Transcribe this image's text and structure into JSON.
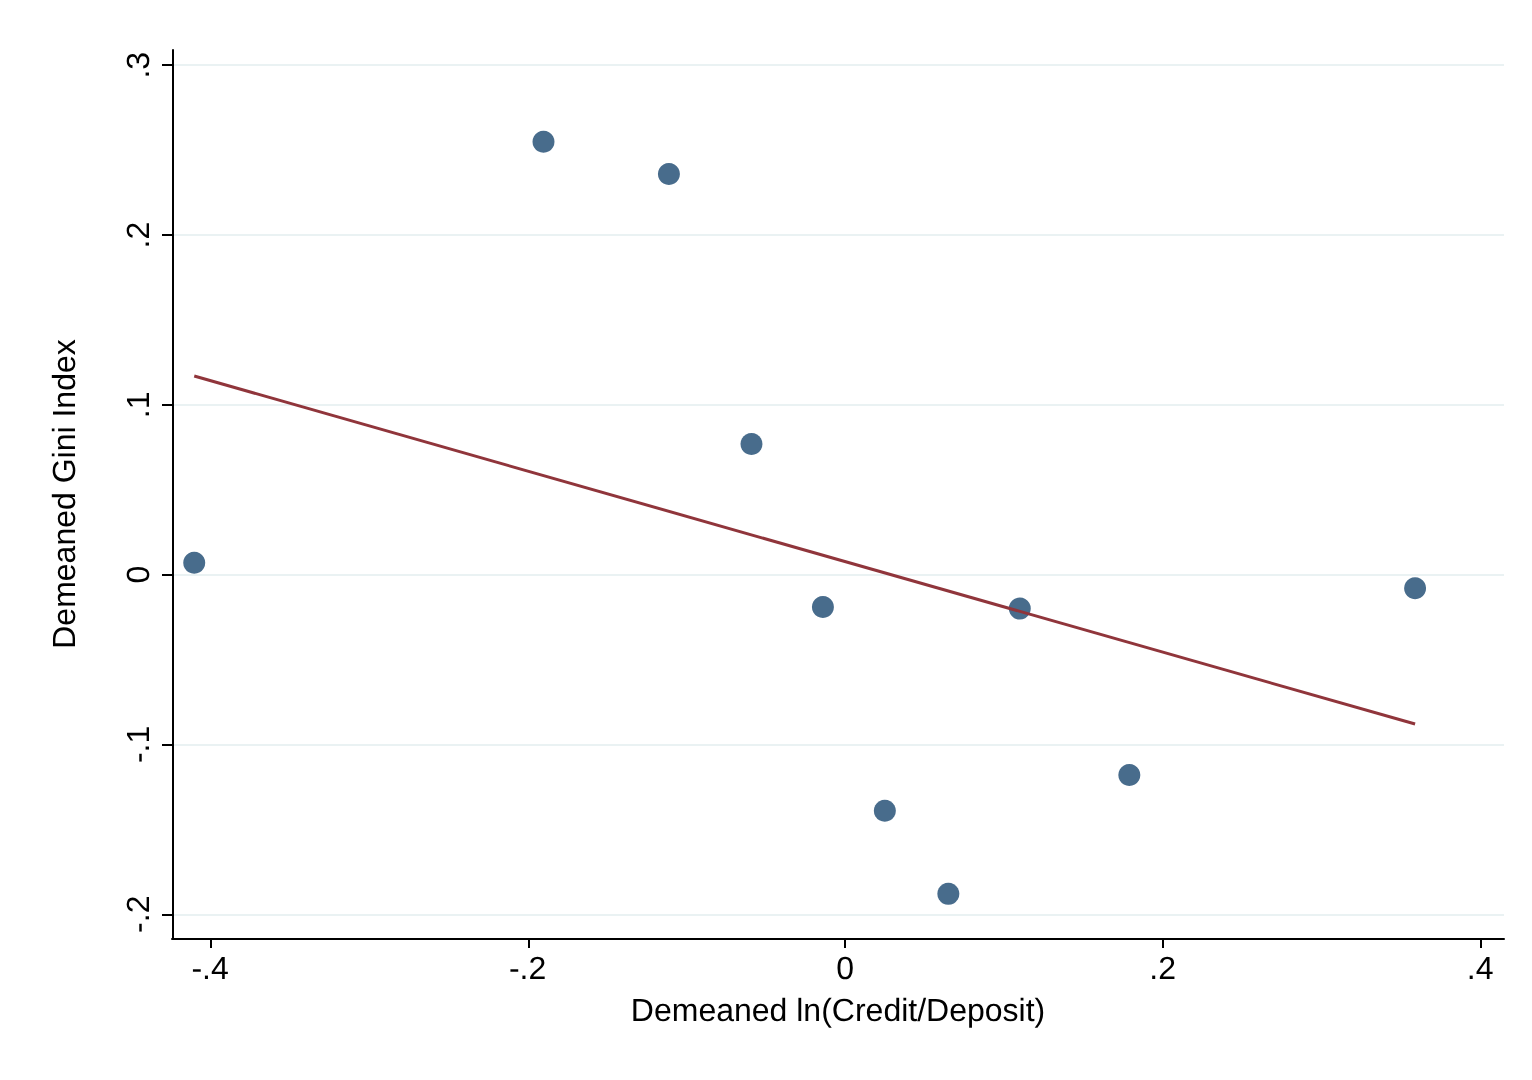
{
  "chart_data": {
    "type": "scatter",
    "xlabel": "Demeaned ln(Credit/Deposit)",
    "ylabel": "Demeaned Gini Index",
    "series": [
      {
        "color": "#1a476f",
        "marker": "circle",
        "x": [
          -0.41,
          -0.19,
          -0.111,
          -0.059,
          -0.014,
          0.025,
          0.065,
          0.11,
          0.179,
          0.359
        ],
        "values": [
          0.007,
          0.255,
          0.236,
          0.077,
          -0.019,
          -0.139,
          -0.188,
          -0.02,
          -0.118,
          -0.008
        ]
      },
      {
        "type": "line",
        "color": "#90353b",
        "x": [
          -0.41,
          0.359
        ],
        "values": [
          0.117,
          -0.088
        ]
      }
    ],
    "xlim": [
      -0.424,
      0.415
    ],
    "ylim": [
      -0.214,
      0.309
    ],
    "xticks": [
      {
        "value": -0.4,
        "label": "-.4"
      },
      {
        "value": -0.2,
        "label": "-.2"
      },
      0,
      {
        "value": 0.2,
        "label": ".2"
      },
      {
        "value": 0.4,
        "label": ".4"
      }
    ],
    "yticks": [
      {
        "value": -0.2,
        "label": "-.2"
      },
      {
        "value": -0.1,
        "label": "-.1"
      },
      0,
      {
        "value": 0.1,
        "label": ".1"
      },
      {
        "value": 0.2,
        "label": ".2"
      },
      {
        "value": 0.3,
        "label": ".3"
      }
    ],
    "grid": "y"
  }
}
